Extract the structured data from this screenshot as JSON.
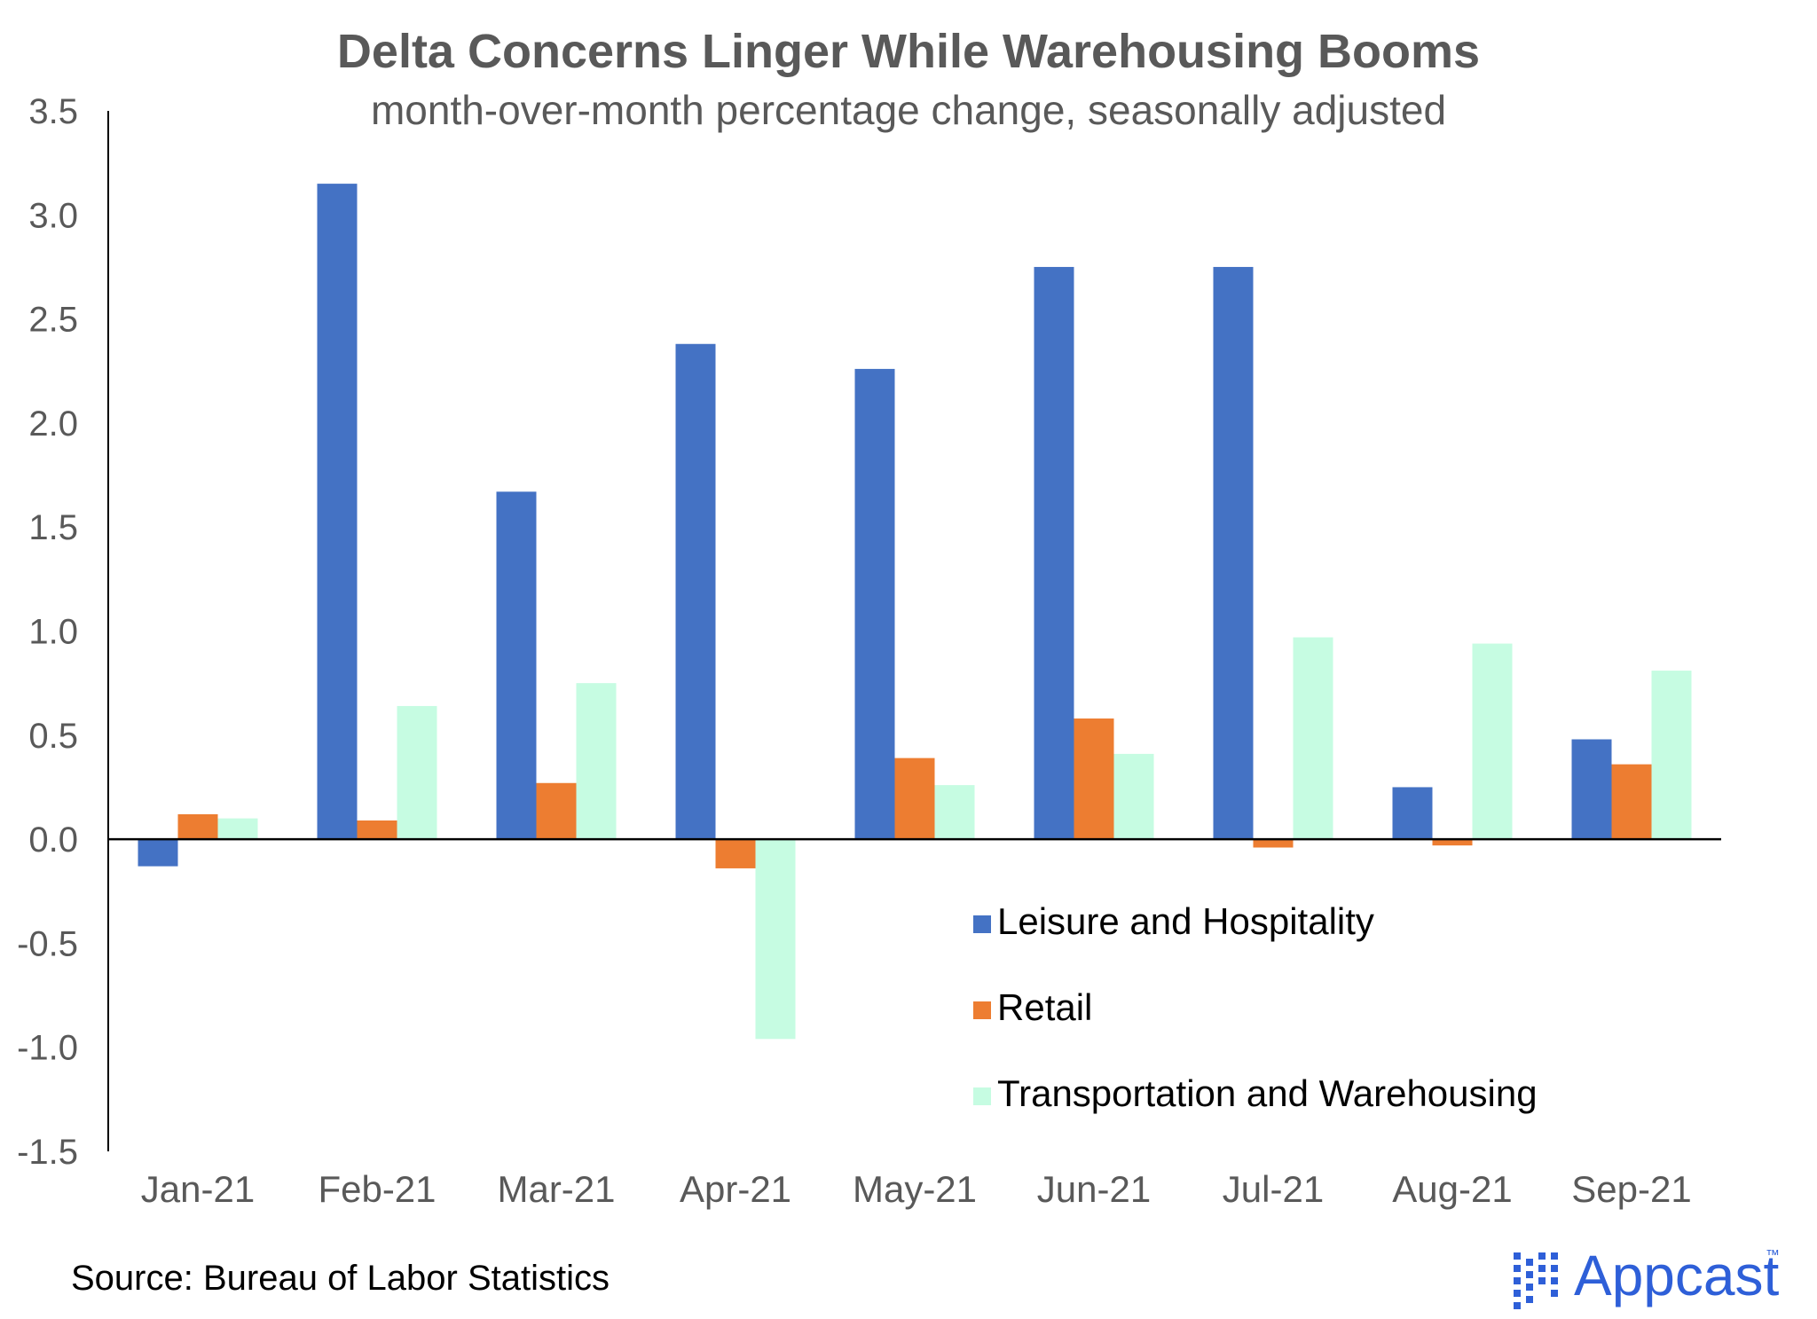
{
  "colors": {
    "leisure": "#4472c4",
    "retail": "#ed7d31",
    "transport": "#c6fce2",
    "axis": "#000000",
    "text": "#595959",
    "brand": "#2e5fd8"
  },
  "chart_data": {
    "type": "bar",
    "title": "Delta Concerns Linger While Warehousing Booms",
    "subtitle": "month-over-month percentage change, seasonally adjusted",
    "categories": [
      "Jan-21",
      "Feb-21",
      "Mar-21",
      "Apr-21",
      "May-21",
      "Jun-21",
      "Jul-21",
      "Aug-21",
      "Sep-21"
    ],
    "series": [
      {
        "name": "Leisure and Hospitality",
        "color_key": "leisure",
        "values": [
          -0.13,
          3.15,
          1.67,
          2.38,
          2.26,
          2.75,
          2.75,
          0.25,
          0.48
        ]
      },
      {
        "name": "Retail",
        "color_key": "retail",
        "values": [
          0.12,
          0.09,
          0.27,
          -0.14,
          0.39,
          0.58,
          -0.04,
          -0.03,
          0.36
        ]
      },
      {
        "name": "Transportation and Warehousing",
        "color_key": "transport",
        "values": [
          0.1,
          0.64,
          0.75,
          -0.96,
          0.26,
          0.41,
          0.97,
          0.94,
          0.81
        ]
      }
    ],
    "ylim": [
      -1.5,
      3.5
    ],
    "yticks": [
      "3.5",
      "3.0",
      "2.5",
      "2.0",
      "1.5",
      "1.0",
      "0.5",
      "0.0",
      "-0.5",
      "-1.0",
      "-1.5"
    ],
    "ytick_values": [
      3.5,
      3.0,
      2.5,
      2.0,
      1.5,
      1.0,
      0.5,
      0.0,
      -0.5,
      -1.0,
      -1.5
    ],
    "xlabel": "",
    "ylabel": "",
    "legend_position": "lower-right",
    "grid": false
  },
  "footer": {
    "source": "Source: Bureau of Labor Statistics",
    "brand": "Appcast",
    "brand_mark": "™"
  }
}
